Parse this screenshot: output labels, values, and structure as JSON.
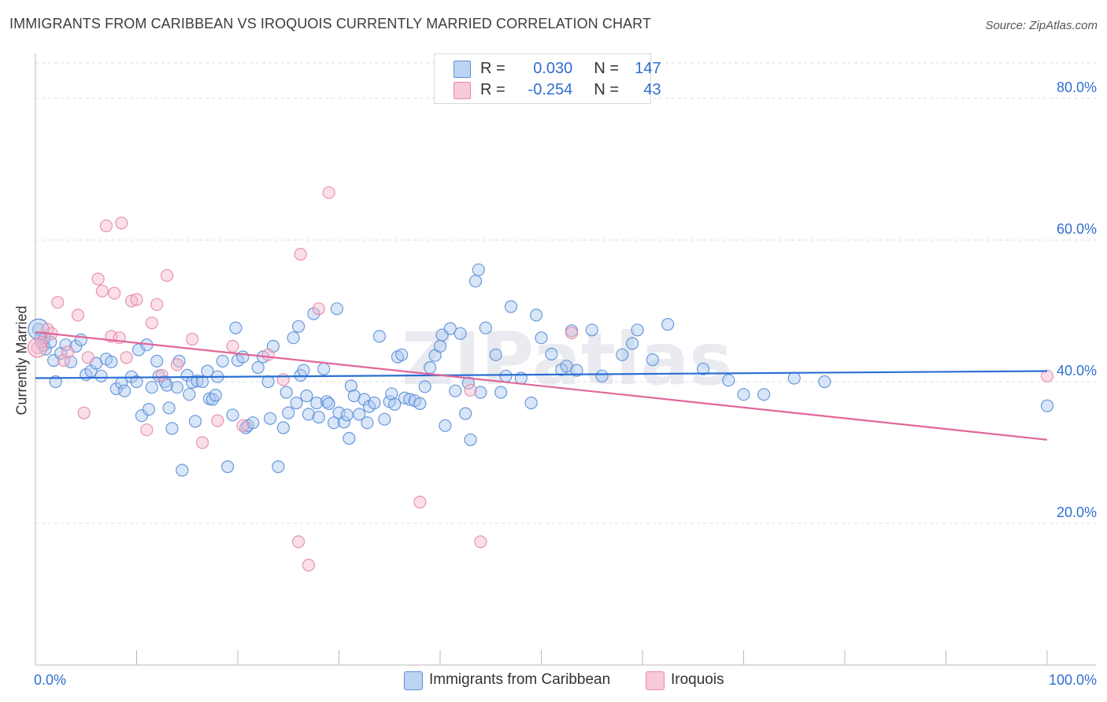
{
  "title": "IMMIGRANTS FROM CARIBBEAN VS IROQUOIS CURRENTLY MARRIED CORRELATION CHART",
  "source": "Source: ZipAtlas.com",
  "watermark": "ZIPatlas",
  "legend": {
    "rows": [
      {
        "r_label": "R =",
        "r_value": "0.030",
        "n_label": "N =",
        "n_value": "147"
      },
      {
        "r_label": "R =",
        "r_value": "-0.254",
        "n_label": "N =",
        "n_value": "43"
      }
    ]
  },
  "colors": {
    "blue_fill": "#aac8f0",
    "blue_stroke": "#5b8fd6",
    "blue_line": "#2a6fd4",
    "pink_fill": "#f5b8cc",
    "pink_stroke": "#e68aa8",
    "pink_line": "#e0679a",
    "tick_text": "#2f6fd0",
    "grid": "#dddddd"
  },
  "chart_data": {
    "type": "scatter",
    "title": "IMMIGRANTS FROM CARIBBEAN VS IROQUOIS CURRENTLY MARRIED CORRELATION CHART",
    "xlabel": "",
    "ylabel": "Currently Married",
    "xlim": [
      0,
      100
    ],
    "ylim": [
      0,
      85
    ],
    "x_tick_labels": [
      "0.0%",
      "100.0%"
    ],
    "y_ticks": [
      20,
      40,
      60,
      80
    ],
    "y_tick_labels": [
      "20.0%",
      "40.0%",
      "60.0%",
      "80.0%"
    ],
    "grid": "horizontal dashed",
    "legend_position": "bottom-center",
    "series": [
      {
        "name": "Immigrants from Caribbean",
        "trend": {
          "x": [
            0,
            100
          ],
          "y": [
            40.5,
            41.5
          ]
        },
        "points": [
          [
            0.3,
            47.4
          ],
          [
            0.5,
            46.1
          ],
          [
            0.8,
            45.1
          ],
          [
            1.0,
            44.6
          ],
          [
            1.5,
            45.6
          ],
          [
            1.8,
            43.0
          ],
          [
            2.0,
            40.0
          ],
          [
            2.5,
            44.0
          ],
          [
            3.0,
            45.2
          ],
          [
            3.5,
            42.8
          ],
          [
            4.0,
            45.0
          ],
          [
            4.5,
            45.9
          ],
          [
            5.0,
            41.0
          ],
          [
            5.5,
            41.5
          ],
          [
            6.0,
            42.6
          ],
          [
            6.5,
            40.8
          ],
          [
            7.0,
            43.2
          ],
          [
            7.5,
            42.8
          ],
          [
            8.0,
            39.0
          ],
          [
            8.5,
            39.8
          ],
          [
            8.8,
            38.7
          ],
          [
            9.5,
            40.7
          ],
          [
            10.0,
            40.0
          ],
          [
            10.2,
            44.5
          ],
          [
            10.5,
            35.2
          ],
          [
            11.0,
            45.2
          ],
          [
            11.2,
            36.1
          ],
          [
            11.5,
            39.2
          ],
          [
            12.0,
            42.9
          ],
          [
            12.2,
            40.8
          ],
          [
            12.8,
            40.0
          ],
          [
            13.0,
            39.5
          ],
          [
            13.2,
            36.3
          ],
          [
            13.5,
            33.4
          ],
          [
            14.0,
            39.2
          ],
          [
            14.2,
            42.9
          ],
          [
            14.5,
            27.5
          ],
          [
            15.0,
            40.9
          ],
          [
            15.2,
            38.2
          ],
          [
            15.5,
            39.9
          ],
          [
            15.8,
            34.4
          ],
          [
            16.0,
            40.1
          ],
          [
            16.5,
            40.0
          ],
          [
            17.0,
            41.5
          ],
          [
            17.2,
            37.6
          ],
          [
            17.5,
            37.5
          ],
          [
            17.8,
            38.1
          ],
          [
            18.0,
            40.7
          ],
          [
            18.5,
            42.9
          ],
          [
            19.0,
            28.0
          ],
          [
            19.5,
            35.3
          ],
          [
            19.8,
            47.6
          ],
          [
            20.0,
            43.0
          ],
          [
            20.5,
            43.5
          ],
          [
            20.8,
            33.5
          ],
          [
            21.0,
            33.8
          ],
          [
            21.5,
            34.2
          ],
          [
            22.0,
            42.0
          ],
          [
            22.5,
            43.5
          ],
          [
            23.0,
            40.0
          ],
          [
            23.2,
            34.8
          ],
          [
            23.5,
            45.0
          ],
          [
            24.0,
            28.0
          ],
          [
            24.5,
            33.5
          ],
          [
            24.8,
            38.5
          ],
          [
            25.0,
            35.6
          ],
          [
            25.5,
            46.2
          ],
          [
            25.8,
            37.0
          ],
          [
            26.0,
            47.8
          ],
          [
            26.2,
            40.9
          ],
          [
            26.5,
            41.6
          ],
          [
            26.8,
            38.0
          ],
          [
            27.0,
            35.4
          ],
          [
            27.5,
            49.6
          ],
          [
            27.8,
            37.0
          ],
          [
            28.0,
            35.0
          ],
          [
            28.5,
            41.8
          ],
          [
            28.8,
            37.2
          ],
          [
            29.0,
            36.9
          ],
          [
            29.5,
            34.2
          ],
          [
            29.8,
            50.3
          ],
          [
            30.0,
            35.6
          ],
          [
            30.5,
            34.3
          ],
          [
            30.8,
            35.3
          ],
          [
            31.0,
            32.0
          ],
          [
            31.2,
            39.4
          ],
          [
            31.5,
            38.0
          ],
          [
            32.0,
            35.4
          ],
          [
            32.5,
            37.5
          ],
          [
            32.8,
            34.2
          ],
          [
            33.0,
            36.5
          ],
          [
            33.5,
            37.0
          ],
          [
            34.0,
            46.4
          ],
          [
            34.5,
            34.7
          ],
          [
            35.0,
            37.2
          ],
          [
            35.2,
            38.3
          ],
          [
            35.5,
            36.8
          ],
          [
            35.8,
            43.5
          ],
          [
            36.2,
            43.8
          ],
          [
            36.5,
            37.7
          ],
          [
            37.0,
            37.5
          ],
          [
            37.5,
            37.3
          ],
          [
            38.0,
            36.9
          ],
          [
            38.5,
            39.3
          ],
          [
            39.0,
            42.0
          ],
          [
            39.5,
            43.7
          ],
          [
            40.0,
            45.0
          ],
          [
            40.2,
            46.6
          ],
          [
            40.5,
            33.8
          ],
          [
            41.0,
            47.5
          ],
          [
            41.5,
            38.7
          ],
          [
            42.0,
            46.8
          ],
          [
            42.5,
            35.5
          ],
          [
            42.8,
            39.8
          ],
          [
            43.0,
            31.8
          ],
          [
            43.5,
            54.2
          ],
          [
            43.8,
            55.8
          ],
          [
            44.0,
            38.5
          ],
          [
            44.5,
            47.6
          ],
          [
            45.5,
            43.8
          ],
          [
            46.0,
            38.5
          ],
          [
            46.5,
            40.8
          ],
          [
            47.0,
            50.6
          ],
          [
            48.0,
            40.5
          ],
          [
            49.0,
            37.0
          ],
          [
            49.5,
            49.4
          ],
          [
            50.0,
            46.2
          ],
          [
            51.0,
            43.9
          ],
          [
            52.0,
            41.7
          ],
          [
            52.5,
            42.2
          ],
          [
            53.0,
            47.2
          ],
          [
            53.5,
            41.6
          ],
          [
            55.0,
            47.3
          ],
          [
            56.0,
            40.8
          ],
          [
            58.0,
            43.8
          ],
          [
            59.0,
            45.4
          ],
          [
            59.5,
            47.3
          ],
          [
            61.0,
            43.1
          ],
          [
            62.5,
            48.1
          ],
          [
            66.0,
            41.8
          ],
          [
            68.5,
            40.2
          ],
          [
            70.0,
            38.2
          ],
          [
            72.0,
            38.2
          ],
          [
            75.0,
            40.5
          ],
          [
            78.0,
            40.0
          ],
          [
            100.0,
            36.6
          ],
          [
            0.9,
            46.2
          ]
        ]
      },
      {
        "name": "Iroquois",
        "trend": {
          "x": [
            0,
            100
          ],
          "y": [
            47.0,
            31.8
          ]
        },
        "points": [
          [
            0.2,
            44.8
          ],
          [
            0.6,
            45.6
          ],
          [
            1.2,
            47.4
          ],
          [
            1.6,
            46.8
          ],
          [
            2.2,
            51.2
          ],
          [
            2.8,
            43.0
          ],
          [
            3.2,
            44.2
          ],
          [
            4.2,
            49.4
          ],
          [
            4.8,
            35.6
          ],
          [
            5.2,
            43.4
          ],
          [
            6.2,
            54.5
          ],
          [
            6.6,
            52.8
          ],
          [
            7.0,
            62.0
          ],
          [
            7.5,
            46.4
          ],
          [
            7.8,
            52.5
          ],
          [
            8.3,
            46.2
          ],
          [
            8.5,
            62.4
          ],
          [
            9.0,
            43.4
          ],
          [
            9.5,
            51.4
          ],
          [
            10.0,
            51.6
          ],
          [
            11.0,
            33.2
          ],
          [
            11.5,
            48.3
          ],
          [
            12.0,
            50.9
          ],
          [
            12.5,
            40.9
          ],
          [
            13.0,
            55.0
          ],
          [
            14.0,
            42.4
          ],
          [
            15.5,
            46.0
          ],
          [
            16.5,
            31.4
          ],
          [
            18.0,
            34.5
          ],
          [
            19.5,
            45.0
          ],
          [
            20.5,
            33.8
          ],
          [
            23.0,
            43.8
          ],
          [
            24.5,
            40.3
          ],
          [
            26.0,
            17.4
          ],
          [
            26.2,
            58.0
          ],
          [
            27.0,
            14.1
          ],
          [
            28.0,
            50.3
          ],
          [
            29.0,
            66.7
          ],
          [
            38.0,
            23.0
          ],
          [
            43.0,
            38.8
          ],
          [
            44.0,
            17.4
          ],
          [
            53.0,
            46.9
          ],
          [
            100.0,
            40.8
          ]
        ]
      }
    ]
  }
}
